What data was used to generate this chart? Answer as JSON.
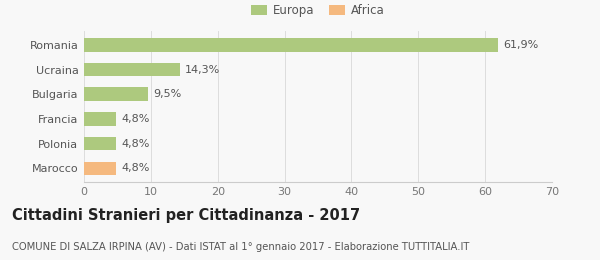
{
  "categories": [
    "Romania",
    "Ucraina",
    "Bulgaria",
    "Francia",
    "Polonia",
    "Marocco"
  ],
  "values": [
    61.9,
    14.3,
    9.5,
    4.8,
    4.8,
    4.8
  ],
  "labels": [
    "61,9%",
    "14,3%",
    "9,5%",
    "4,8%",
    "4,8%",
    "4,8%"
  ],
  "bar_colors": [
    "#adc97e",
    "#adc97e",
    "#adc97e",
    "#adc97e",
    "#adc97e",
    "#f5b97f"
  ],
  "legend_items": [
    {
      "label": "Europa",
      "color": "#adc97e"
    },
    {
      "label": "Africa",
      "color": "#f5b97f"
    }
  ],
  "xlim": [
    0,
    70
  ],
  "xticks": [
    0,
    10,
    20,
    30,
    40,
    50,
    60,
    70
  ],
  "title": "Cittadini Stranieri per Cittadinanza - 2017",
  "subtitle": "COMUNE DI SALZA IRPINA (AV) - Dati ISTAT al 1° gennaio 2017 - Elaborazione TUTTITALIA.IT",
  "background_color": "#f8f8f8",
  "bar_height": 0.55,
  "label_fontsize": 8.0,
  "tick_fontsize": 8.0,
  "title_fontsize": 10.5,
  "subtitle_fontsize": 7.2
}
